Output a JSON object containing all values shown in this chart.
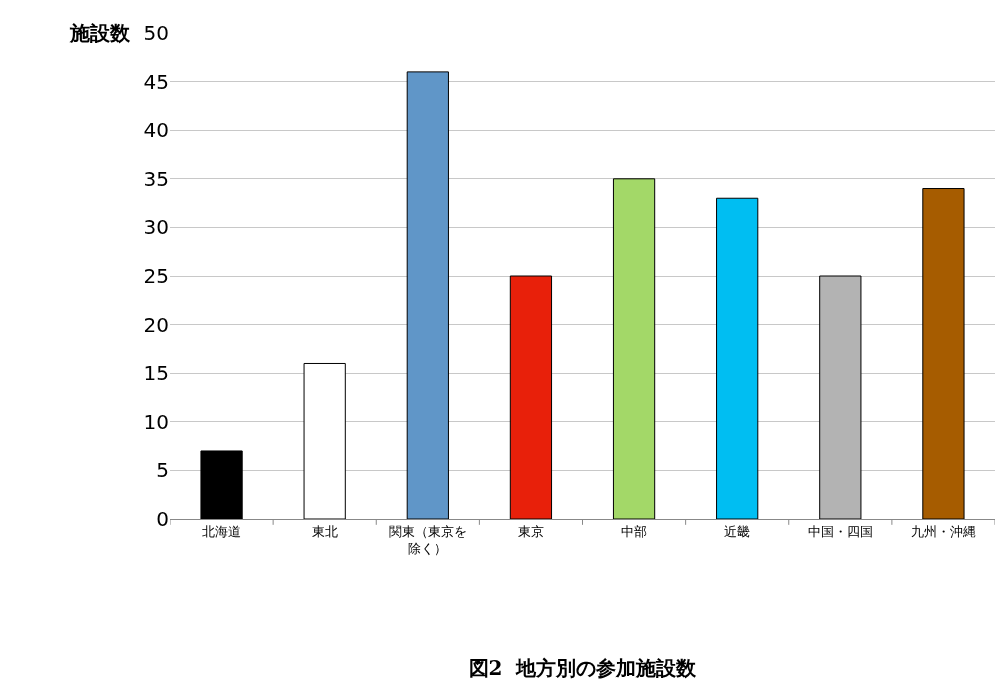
{
  "chart_data": {
    "type": "bar",
    "title": "図2  地方別の参加施設数",
    "ylabel": "施設数",
    "categories": [
      "北海道",
      "東北",
      "関東（東京を除く）",
      "東京",
      "中部",
      "近畿",
      "中国・四国",
      "九州・沖縄"
    ],
    "values": [
      7,
      16,
      46,
      25,
      35,
      33,
      25,
      34
    ],
    "colors": [
      "#000000",
      "#ffffff",
      "#6096c8",
      "#e8200a",
      "#a3d868",
      "#00bef2",
      "#b3b3b3",
      "#a65c00"
    ],
    "ylim": [
      0,
      50
    ],
    "yticks": [
      0,
      5,
      10,
      15,
      20,
      25,
      30,
      35,
      40,
      45,
      50
    ],
    "grid": "y"
  }
}
